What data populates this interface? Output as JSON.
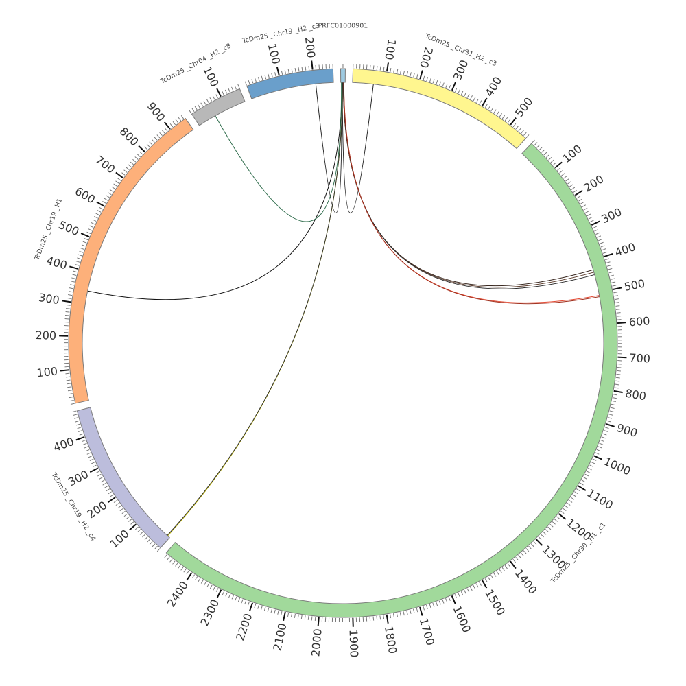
{
  "chart_data": {
    "type": "circos",
    "title": "",
    "tick_major_interval": 100,
    "tick_minor_interval": 10,
    "segments": [
      {
        "name": "PRFC01000901",
        "length": 14,
        "color": "#9ecae1",
        "ticks": false
      },
      {
        "name": "TcDm25_Chr31_H2_c3",
        "label": "TcDm25 _Chr31_H2 _c3",
        "length": 560,
        "color": "#fff68f",
        "ticks": true
      },
      {
        "name": "TcDm25_Chr30_H1_c1",
        "label": "TcDm25 _Chr30 _H1 _c1",
        "length": 2495,
        "color": "#a1d99b",
        "ticks": true
      },
      {
        "name": "TcDm25_Chr19_H2_c4",
        "label": "TcDm25 _Chr19 _H2 _c4",
        "length": 480,
        "color": "#bcbddc",
        "ticks": true
      },
      {
        "name": "TcDm25_Chr19_H1",
        "label": "TcDm25 _Chr19 _H1",
        "length": 955,
        "color": "#fdb07a",
        "ticks": true
      },
      {
        "name": "TcDm25_Chr04_H2_c8",
        "label": "TcDm25 _Chr04 _H2 _c8",
        "length": 160,
        "color": "#b8b8b8",
        "ticks": true
      },
      {
        "name": "TcDm25_Chr19_H2_c3",
        "label": "TcDm25 _Chr19 _H2 _c3",
        "length": 260,
        "color": "#6a9fcb",
        "ticks": true
      }
    ],
    "links": [
      {
        "from": [
          "PRFC01000901",
          5
        ],
        "to": [
          "TcDm25_Chr31_H2_c3",
          65
        ],
        "color": "#222222"
      },
      {
        "from": [
          "PRFC01000901",
          3
        ],
        "to": [
          "TcDm25_Chr19_H2_c3",
          205
        ],
        "color": "#222222"
      },
      {
        "from": [
          "PRFC01000901",
          8
        ],
        "to": [
          "TcDm25_Chr30_H1_c1",
          428
        ],
        "color": "#3b2a22"
      },
      {
        "from": [
          "PRFC01000901",
          8
        ],
        "to": [
          "TcDm25_Chr30_H1_c1",
          436
        ],
        "color": "#5a3a2a"
      },
      {
        "from": [
          "PRFC01000901",
          9
        ],
        "to": [
          "TcDm25_Chr30_H1_c1",
          444
        ],
        "color": "#2a2a2a"
      },
      {
        "from": [
          "PRFC01000901",
          10
        ],
        "to": [
          "TcDm25_Chr30_H1_c1",
          510
        ],
        "color": "#e34a33"
      },
      {
        "from": [
          "PRFC01000901",
          10
        ],
        "to": [
          "TcDm25_Chr30_H1_c1",
          514
        ],
        "color": "#a0301e"
      },
      {
        "from": [
          "PRFC01000901",
          6
        ],
        "to": [
          "TcDm25_Chr19_H2_c4",
          8
        ],
        "color": "#b8b000"
      },
      {
        "from": [
          "PRFC01000901",
          6
        ],
        "to": [
          "TcDm25_Chr19_H2_c4",
          10
        ],
        "color": "#333333"
      },
      {
        "from": [
          "PRFC01000901",
          4
        ],
        "to": [
          "TcDm25_Chr19_H1",
          342
        ],
        "color": "#111111"
      },
      {
        "from": [
          "TcDm25_Chr04_H2_c8",
          58
        ],
        "to": [
          "PRFC01000901",
          2
        ],
        "color": "#2d6b4a"
      }
    ]
  }
}
